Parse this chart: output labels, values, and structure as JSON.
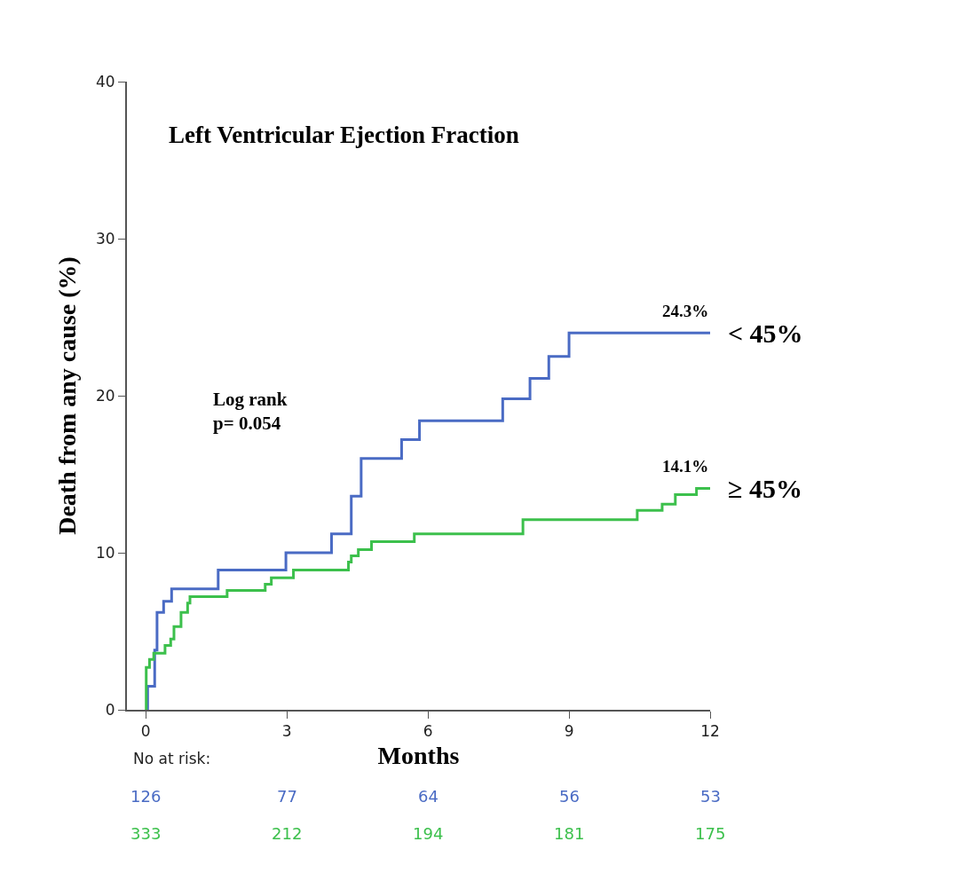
{
  "chart_data": {
    "type": "step",
    "title": "Left Ventricular Ejection Fraction",
    "xlabel": "Months",
    "ylabel": "Death from any cause (%)",
    "xlim": [
      -0.4,
      12
    ],
    "xticks": [
      0,
      3,
      6,
      9,
      12
    ],
    "ylim": [
      0,
      40
    ],
    "yticks": [
      0,
      10,
      20,
      30,
      40
    ],
    "legend": false,
    "marker": "none",
    "line_style": "solid",
    "series": [
      {
        "name": "< 45%",
        "color": "#4a6bc4",
        "x": [
          0,
          0.04,
          0.19,
          0.24,
          0.38,
          0.55,
          1.54,
          2.98,
          3.95,
          4.37,
          4.58,
          5.44,
          5.82,
          7.59,
          8.17,
          8.57,
          9.0,
          12
        ],
        "values": [
          0,
          1.5,
          3.8,
          6.2,
          6.9,
          7.7,
          8.9,
          10.0,
          11.2,
          13.6,
          16.0,
          17.2,
          18.4,
          19.8,
          21.1,
          22.5,
          24.0,
          24.0
        ]
      },
      {
        "name": "≥ 45%",
        "color": "#3cc04c",
        "x": [
          0,
          0.01,
          0.08,
          0.17,
          0.41,
          0.53,
          0.6,
          0.75,
          0.89,
          0.94,
          1.73,
          2.54,
          2.67,
          3.14,
          4.31,
          4.37,
          4.52,
          4.8,
          5.71,
          8.02,
          10.45,
          10.98,
          11.26,
          11.71,
          12
        ],
        "values": [
          0,
          2.7,
          3.2,
          3.6,
          4.1,
          4.5,
          5.3,
          6.2,
          6.8,
          7.2,
          7.6,
          8.0,
          8.4,
          8.9,
          9.4,
          9.8,
          10.2,
          10.7,
          11.2,
          12.1,
          12.7,
          13.1,
          13.7,
          14.1,
          14.1
        ]
      }
    ],
    "annotations": [
      "24.3%",
      "14.1%",
      "Log rank\np= 0.054",
      "No at risk:",
      "126",
      "77",
      "64",
      "56",
      "53",
      "333",
      "212",
      "194",
      "181",
      "175"
    ]
  }
}
